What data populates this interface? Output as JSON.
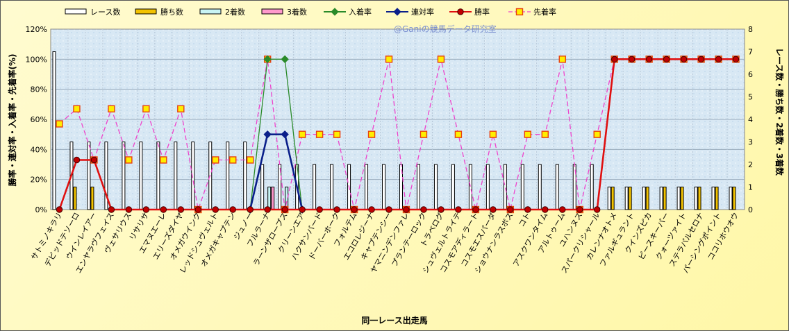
{
  "chart_data": {
    "type": "bar",
    "watermark": "@Ganiの競馬データ研究室",
    "xlabel": "同一レース出走馬",
    "ylabel_left": "勝率・連対率・入着率・先着率(%)",
    "ylabel_right": "レース数・勝ち数・2着数・3着数",
    "ylim_left": [
      0,
      120
    ],
    "ylim_right": [
      0,
      8
    ],
    "yticks_left": [
      "0%",
      "20%",
      "40%",
      "60%",
      "80%",
      "100%",
      "120%"
    ],
    "yticks_right": [
      "0",
      "1",
      "2",
      "3",
      "4",
      "5",
      "6",
      "7",
      "8"
    ],
    "grid": true,
    "legend_position": "top",
    "categories": [
      "サトミノキラリ",
      "デビッドテソーロ",
      "ウインレイアー",
      "エンヤラヴフェイス",
      "ヴェサリウス",
      "リサリサ",
      "エマヌエーレ",
      "エリーズダイヤ",
      "オメガウインク",
      "レッドシュヴェルト",
      "オメガキャプテン",
      "ジュノー",
      "フルラーナ",
      "ラーンザロープス",
      "クリーンエア",
      "ハクサンバード",
      "ドーバーホーク",
      "フォルテム",
      "エコロレジーナ",
      "キャプテンシー",
      "ヤマニンデンファレ",
      "プランテーロック",
      "トラベログ",
      "シュヴェルトライテ",
      "コスモアディラート",
      "コスモエスパーダ",
      "ショウナンラスボス",
      "コト",
      "アスクワンタイム",
      "アルトゥーム",
      "ユハンヌス",
      "スパークリシャール",
      "カレンナオトメ",
      "ファルギュラント",
      "クインズピカ",
      "ピースキーパー",
      "クォーツァイト",
      "ステラパルセロナ",
      "パーシングポイント",
      "ココリホウオウ"
    ],
    "bar_series": [
      {
        "name": "レース数",
        "color": "#ffffff",
        "values": [
          7,
          3,
          3,
          3,
          3,
          3,
          3,
          3,
          3,
          3,
          3,
          3,
          2,
          2,
          2,
          2,
          2,
          2,
          2,
          2,
          2,
          2,
          2,
          2,
          2,
          2,
          2,
          2,
          2,
          2,
          2,
          2,
          1,
          1,
          1,
          1,
          1,
          1,
          1,
          1
        ]
      },
      {
        "name": "勝ち数",
        "color": "#f2c200",
        "values": [
          0,
          1,
          1,
          0,
          0,
          0,
          0,
          0,
          0,
          0,
          0,
          0,
          0,
          0,
          0,
          0,
          0,
          0,
          0,
          0,
          0,
          0,
          0,
          0,
          0,
          0,
          0,
          0,
          0,
          0,
          0,
          0,
          1,
          1,
          1,
          1,
          1,
          1,
          1,
          1
        ]
      },
      {
        "name": "2着数",
        "color": "#c8f4f4",
        "values": [
          0,
          0,
          0,
          0,
          0,
          0,
          0,
          0,
          0,
          0,
          0,
          0,
          1,
          1,
          0,
          0,
          0,
          0,
          0,
          0,
          0,
          0,
          0,
          0,
          0,
          0,
          0,
          0,
          0,
          0,
          0,
          0,
          0,
          0,
          0,
          0,
          0,
          0,
          0,
          0
        ]
      },
      {
        "name": "3着数",
        "color": "#ff99cc",
        "values": [
          0,
          0,
          0,
          0,
          0,
          0,
          0,
          0,
          0,
          0,
          0,
          0,
          1,
          0,
          0,
          0,
          0,
          0,
          0,
          0,
          0,
          0,
          0,
          0,
          0,
          0,
          0,
          0,
          0,
          0,
          0,
          0,
          0,
          0,
          0,
          0,
          0,
          0,
          0,
          0
        ]
      }
    ],
    "line_series": [
      {
        "name": "入着率",
        "color": "#2a8a2a",
        "marker": "diamond",
        "dashed": false,
        "values": [
          null,
          null,
          null,
          null,
          null,
          null,
          null,
          null,
          null,
          null,
          null,
          0,
          100,
          100,
          0,
          null,
          null,
          null,
          null,
          null,
          null,
          null,
          null,
          null,
          null,
          null,
          null,
          null,
          null,
          null,
          null,
          null,
          null,
          null,
          null,
          null,
          null,
          null,
          null,
          null
        ]
      },
      {
        "name": "連対率",
        "color": "#0a1f8a",
        "marker": "diamond",
        "dashed": false,
        "values": [
          null,
          null,
          null,
          null,
          null,
          null,
          null,
          null,
          null,
          null,
          null,
          0,
          50,
          50,
          0,
          null,
          null,
          null,
          null,
          null,
          null,
          null,
          null,
          null,
          null,
          null,
          null,
          null,
          null,
          null,
          null,
          null,
          null,
          null,
          null,
          null,
          null,
          null,
          null,
          null
        ]
      },
      {
        "name": "勝率",
        "color": "#e01010",
        "marker": "circle",
        "dashed": false,
        "values": [
          0,
          33,
          33,
          0,
          0,
          0,
          0,
          0,
          0,
          0,
          0,
          0,
          0,
          0,
          0,
          0,
          0,
          0,
          0,
          0,
          0,
          0,
          0,
          0,
          0,
          0,
          0,
          0,
          0,
          0,
          0,
          0,
          100,
          100,
          100,
          100,
          100,
          100,
          100,
          100
        ]
      },
      {
        "name": "先着率",
        "color": "#ee44cc",
        "marker": "square",
        "dashed": true,
        "values": [
          57,
          67,
          33,
          67,
          33,
          67,
          33,
          67,
          0,
          33,
          33,
          33,
          100,
          0,
          50,
          50,
          50,
          0,
          50,
          100,
          0,
          50,
          100,
          50,
          0,
          50,
          0,
          50,
          50,
          100,
          0,
          50,
          100,
          100,
          100,
          100,
          100,
          100,
          100,
          100
        ]
      }
    ]
  }
}
